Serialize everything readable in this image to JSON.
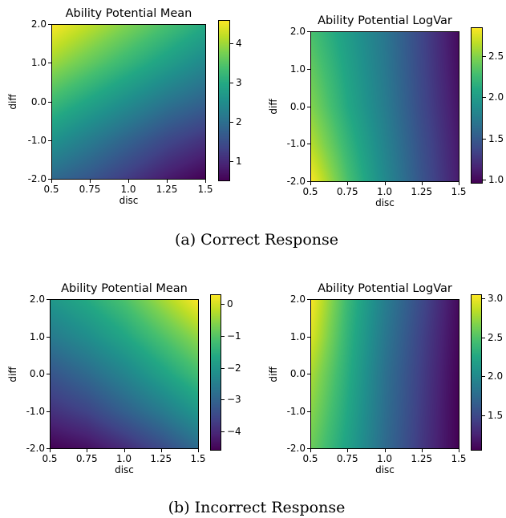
{
  "figures": [
    {
      "caption": "(a) Correct Response",
      "panels": [
        {
          "title": "Ability Potential Mean",
          "xlabel": "disc",
          "ylabel": "diff",
          "xticks": [
            "0.5",
            "0.75",
            "1.0",
            "1.25",
            "1.5"
          ],
          "yticks": [
            "2.0",
            "1.0",
            "0.0",
            "-1.0",
            "-2.0"
          ],
          "colorbar_ticks": [
            "4",
            "3",
            "2",
            "1"
          ]
        },
        {
          "title": "Ability Potential LogVar",
          "xlabel": "disc",
          "ylabel": "diff",
          "xticks": [
            "0.5",
            "0.75",
            "1.0",
            "1.25",
            "1.5"
          ],
          "yticks": [
            "2.0",
            "1.0",
            "0.0",
            "-1.0",
            "-2.0"
          ],
          "colorbar_ticks": [
            "2.5",
            "2.0",
            "1.5",
            "1.0"
          ]
        }
      ]
    },
    {
      "caption": "(b) Incorrect Response",
      "panels": [
        {
          "title": "Ability Potential Mean",
          "xlabel": "disc",
          "ylabel": "diff",
          "xticks": [
            "0.5",
            "0.75",
            "1.0",
            "1.25",
            "1.5"
          ],
          "yticks": [
            "2.0",
            "1.0",
            "0.0",
            "-1.0",
            "-2.0"
          ],
          "colorbar_ticks": [
            "0",
            "−1",
            "−2",
            "−3",
            "−4"
          ]
        },
        {
          "title": "Ability Potential LogVar",
          "xlabel": "disc",
          "ylabel": "diff",
          "xticks": [
            "0.5",
            "0.75",
            "1.0",
            "1.25",
            "1.5"
          ],
          "yticks": [
            "2.0",
            "1.0",
            "0.0",
            "-1.0",
            "-2.0"
          ],
          "colorbar_ticks": [
            "3.0",
            "2.5",
            "2.0",
            "1.5"
          ]
        }
      ]
    }
  ],
  "chart_data": [
    {
      "type": "heatmap",
      "title": "Ability Potential Mean",
      "subplot": "(a) Correct Response",
      "xlabel": "disc",
      "ylabel": "diff",
      "xlim": [
        0.5,
        1.5
      ],
      "ylim": [
        -2.0,
        2.0
      ],
      "colormap": "viridis",
      "clim": [
        0.5,
        4.6
      ],
      "grid_x": [
        0.5,
        0.75,
        1.0,
        1.25,
        1.5
      ],
      "grid_y": [
        2.0,
        1.0,
        0.0,
        -1.0,
        -2.0
      ],
      "values": [
        [
          4.6,
          4.2,
          3.8,
          3.4,
          3.0
        ],
        [
          4.0,
          3.6,
          3.2,
          2.8,
          2.4
        ],
        [
          3.3,
          2.9,
          2.5,
          2.1,
          1.8
        ],
        [
          2.6,
          2.2,
          1.8,
          1.4,
          1.1
        ],
        [
          1.9,
          1.6,
          1.2,
          0.8,
          0.5
        ]
      ]
    },
    {
      "type": "heatmap",
      "title": "Ability Potential LogVar",
      "subplot": "(a) Correct Response",
      "xlabel": "disc",
      "ylabel": "diff",
      "xlim": [
        0.5,
        1.5
      ],
      "ylim": [
        -2.0,
        2.0
      ],
      "colormap": "viridis",
      "clim": [
        0.95,
        2.85
      ],
      "grid_x": [
        0.5,
        0.75,
        1.0,
        1.25,
        1.5
      ],
      "grid_y": [
        2.0,
        1.0,
        0.0,
        -1.0,
        -2.0
      ],
      "values": [
        [
          2.3,
          2.0,
          1.7,
          1.35,
          1.0
        ],
        [
          2.4,
          2.05,
          1.72,
          1.36,
          1.02
        ],
        [
          2.5,
          2.1,
          1.75,
          1.38,
          1.05
        ],
        [
          2.65,
          2.2,
          1.8,
          1.42,
          1.08
        ],
        [
          2.85,
          2.3,
          1.85,
          1.45,
          1.1
        ]
      ]
    },
    {
      "type": "heatmap",
      "title": "Ability Potential Mean",
      "subplot": "(b) Incorrect Response",
      "xlabel": "disc",
      "ylabel": "diff",
      "xlim": [
        0.5,
        1.5
      ],
      "ylim": [
        -2.0,
        2.0
      ],
      "colormap": "viridis",
      "clim": [
        -4.6,
        0.3
      ],
      "grid_x": [
        0.5,
        0.75,
        1.0,
        1.25,
        1.5
      ],
      "grid_y": [
        2.0,
        1.0,
        0.0,
        -1.0,
        -2.0
      ],
      "values": [
        [
          -2.0,
          -1.6,
          -1.1,
          -0.4,
          0.3
        ],
        [
          -2.6,
          -2.2,
          -1.7,
          -1.1,
          -0.5
        ],
        [
          -3.3,
          -2.9,
          -2.4,
          -1.8,
          -1.2
        ],
        [
          -3.9,
          -3.6,
          -3.1,
          -2.6,
          -2.0
        ],
        [
          -4.6,
          -4.4,
          -4.0,
          -3.5,
          -2.9
        ]
      ]
    },
    {
      "type": "heatmap",
      "title": "Ability Potential LogVar",
      "subplot": "(b) Incorrect Response",
      "xlabel": "disc",
      "ylabel": "diff",
      "xlim": [
        0.5,
        1.5
      ],
      "ylim": [
        -2.0,
        2.0
      ],
      "colormap": "viridis",
      "clim": [
        1.05,
        3.05
      ],
      "grid_x": [
        0.5,
        0.75,
        1.0,
        1.25,
        1.5
      ],
      "grid_y": [
        2.0,
        1.0,
        0.0,
        -1.0,
        -2.0
      ],
      "values": [
        [
          3.05,
          2.4,
          1.9,
          1.5,
          1.1
        ],
        [
          2.95,
          2.35,
          1.85,
          1.45,
          1.08
        ],
        [
          2.8,
          2.3,
          1.8,
          1.42,
          1.06
        ],
        [
          2.7,
          2.25,
          1.78,
          1.4,
          1.05
        ],
        [
          2.6,
          2.2,
          1.75,
          1.38,
          1.05
        ]
      ]
    }
  ]
}
